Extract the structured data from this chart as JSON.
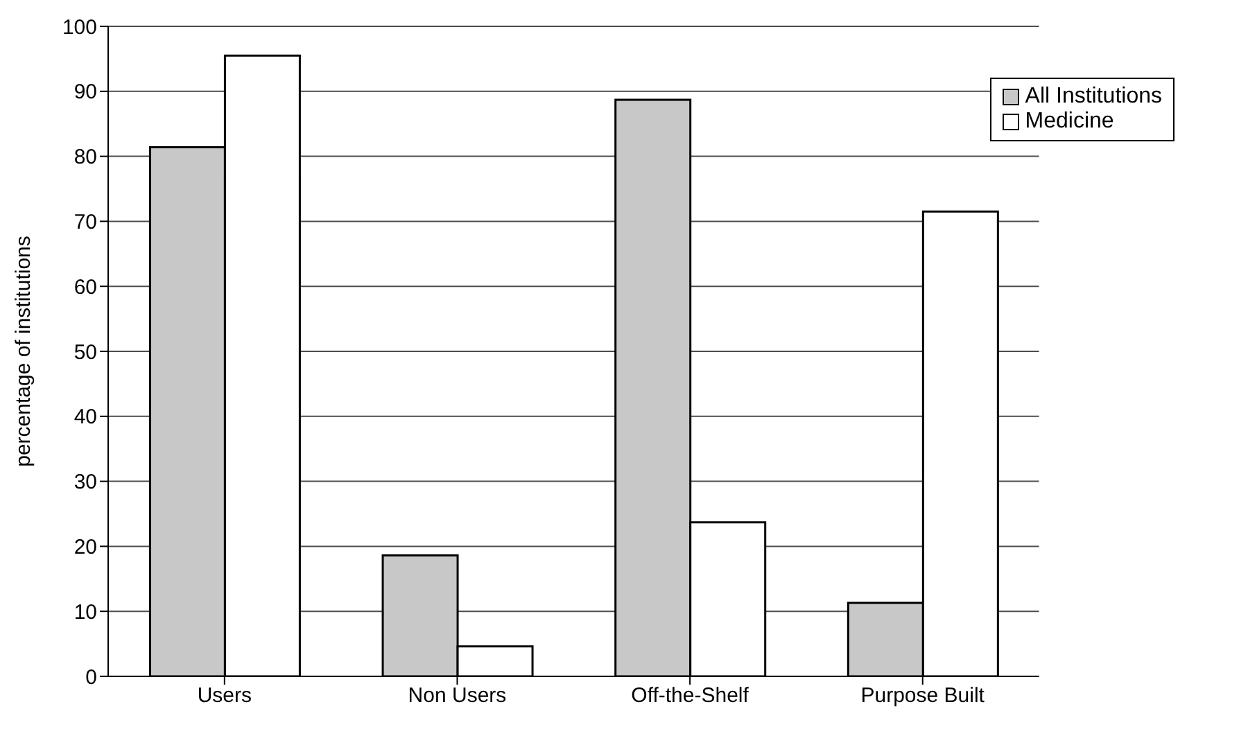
{
  "chart_data": {
    "type": "bar",
    "ylabel": "percentage of institutions",
    "categories": [
      "Users",
      "Non Users",
      "Off-the-Shelf",
      "Purpose Built"
    ],
    "series": [
      {
        "name": "All Institutions",
        "color": "#c8c8c8",
        "values": [
          81.4,
          18.6,
          88.7,
          11.3
        ]
      },
      {
        "name": "Medicine",
        "color": "#ffffff",
        "values": [
          95.5,
          4.6,
          23.7,
          71.5
        ]
      }
    ],
    "ylim": [
      0,
      100
    ],
    "yticks": [
      0,
      10,
      20,
      30,
      40,
      50,
      60,
      70,
      80,
      90,
      100
    ],
    "grid": "y",
    "legend": "top right"
  }
}
